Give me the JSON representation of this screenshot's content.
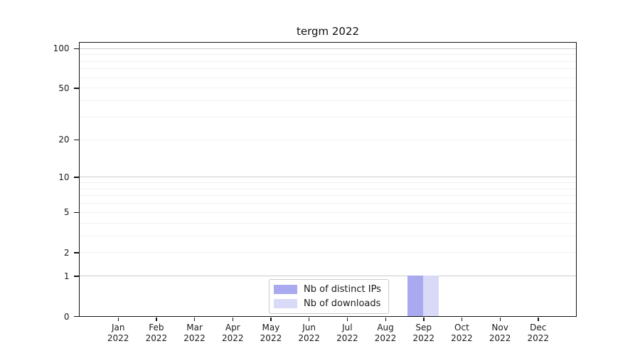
{
  "chart_data": {
    "type": "bar",
    "title": "tergm 2022",
    "categories": [
      "Jan 2022",
      "Feb 2022",
      "Mar 2022",
      "Apr 2022",
      "May 2022",
      "Jun 2022",
      "Jul 2022",
      "Aug 2022",
      "Sep 2022",
      "Oct 2022",
      "Nov 2022",
      "Dec 2022"
    ],
    "x_months": [
      "Jan",
      "Feb",
      "Mar",
      "Apr",
      "May",
      "Jun",
      "Jul",
      "Aug",
      "Sep",
      "Oct",
      "Nov",
      "Dec"
    ],
    "x_year": "2022",
    "series": [
      {
        "name": "Nb of distinct IPs",
        "color": "#a9a9ef",
        "values": [
          0,
          0,
          0,
          0,
          0,
          0,
          0,
          0,
          1,
          0,
          0,
          0
        ]
      },
      {
        "name": "Nb of downloads",
        "color": "#d9d9f8",
        "values": [
          0,
          0,
          0,
          0,
          0,
          0,
          0,
          0,
          1,
          0,
          0,
          0
        ]
      }
    ],
    "xlabel": "",
    "ylabel": "",
    "yscale": "log1p",
    "ylim": [
      0,
      110
    ],
    "yticks": [
      0,
      1,
      2,
      5,
      10,
      20,
      50,
      100
    ],
    "major_gridlines": [
      1,
      10,
      100
    ],
    "minor_gridlines": [
      2,
      3,
      4,
      5,
      6,
      7,
      8,
      9,
      20,
      30,
      40,
      50,
      60,
      70,
      80,
      90
    ],
    "grid": true,
    "legend_position": "lower center"
  },
  "colors": {
    "major_grid": "#cccccc",
    "minor_grid": "#f1f1f1",
    "axis": "#141414",
    "text": "#1a1a1a",
    "legend_border": "#cbcbcb",
    "background": "#ffffff"
  }
}
